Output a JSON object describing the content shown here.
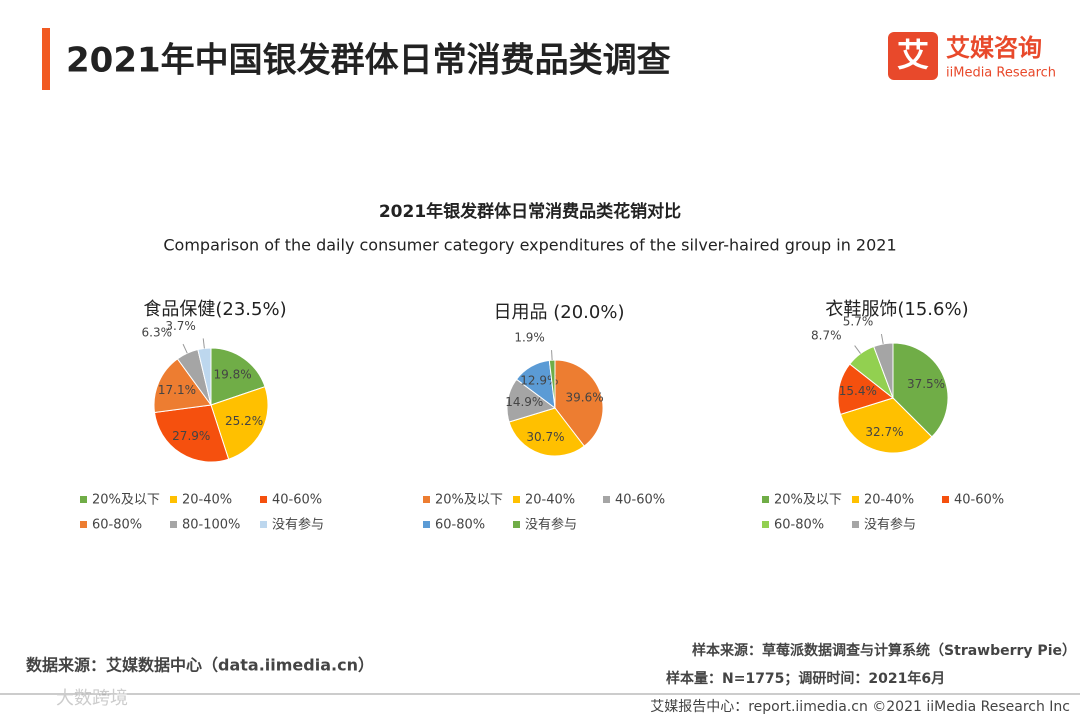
{
  "header": {
    "title": "2021年中国银发群体日常消费品类调查",
    "logo_mark": "艾",
    "logo_name": "艾媒咨询",
    "logo_sub": "iiMedia Research"
  },
  "figure": {
    "title": "2021年银发群体日常消费品类花销对比",
    "subtitle": "Comparison of the daily consumer category expenditures of the silver-haired group in 2021"
  },
  "chart_data": [
    {
      "type": "pie",
      "title": "食品保健(23.5%)",
      "categories": [
        "20%及以下",
        "20-40%",
        "40-60%",
        "60-80%",
        "80-100%",
        "没有参与"
      ],
      "values": [
        19.8,
        25.2,
        27.9,
        17.1,
        6.3,
        3.7
      ],
      "value_labels": [
        "19.8%",
        "25.2%",
        "27.9%",
        "17.1%",
        "6.3%",
        "3.7%"
      ],
      "colors": [
        "#70AD47",
        "#FFC000",
        "#F5500E",
        "#ED7D31",
        "#A5A5A5",
        "#BDD7EE"
      ]
    },
    {
      "type": "pie",
      "title": "日用品 (20.0%)",
      "categories": [
        "20%及以下",
        "20-40%",
        "40-60%",
        "60-80%",
        "没有参与"
      ],
      "values": [
        39.6,
        30.7,
        14.9,
        12.9,
        1.9
      ],
      "value_labels": [
        "39.6%",
        "30.7%",
        "14.9%",
        "12.9%",
        "1.9%"
      ],
      "colors": [
        "#ED7D31",
        "#FFC000",
        "#A5A5A5",
        "#5B9BD5",
        "#70AD47"
      ]
    },
    {
      "type": "pie",
      "title": "衣鞋服饰(15.6%)",
      "categories": [
        "20%及以下",
        "20-40%",
        "40-60%",
        "60-80%",
        "没有参与"
      ],
      "values": [
        37.5,
        32.7,
        15.4,
        8.7,
        5.7
      ],
      "value_labels": [
        "37.5%",
        "32.7%",
        "15.4%",
        "8.7%",
        "5.7%"
      ],
      "colors": [
        "#70AD47",
        "#FFC000",
        "#F5500E",
        "#92D050",
        "#A5A5A5"
      ]
    }
  ],
  "footer": {
    "data_source": "数据来源：艾媒数据中心（data.iimedia.cn）",
    "sample_source": "样本来源：草莓派数据调查与计算系统（Strawberry Pie）",
    "sample_size": "样本量：N=1775；调研时间：2021年6月",
    "report_center": "艾媒报告中心：report.iimedia.cn  ©2021  iiMedia Research  Inc",
    "watermark": "大数跨境"
  }
}
